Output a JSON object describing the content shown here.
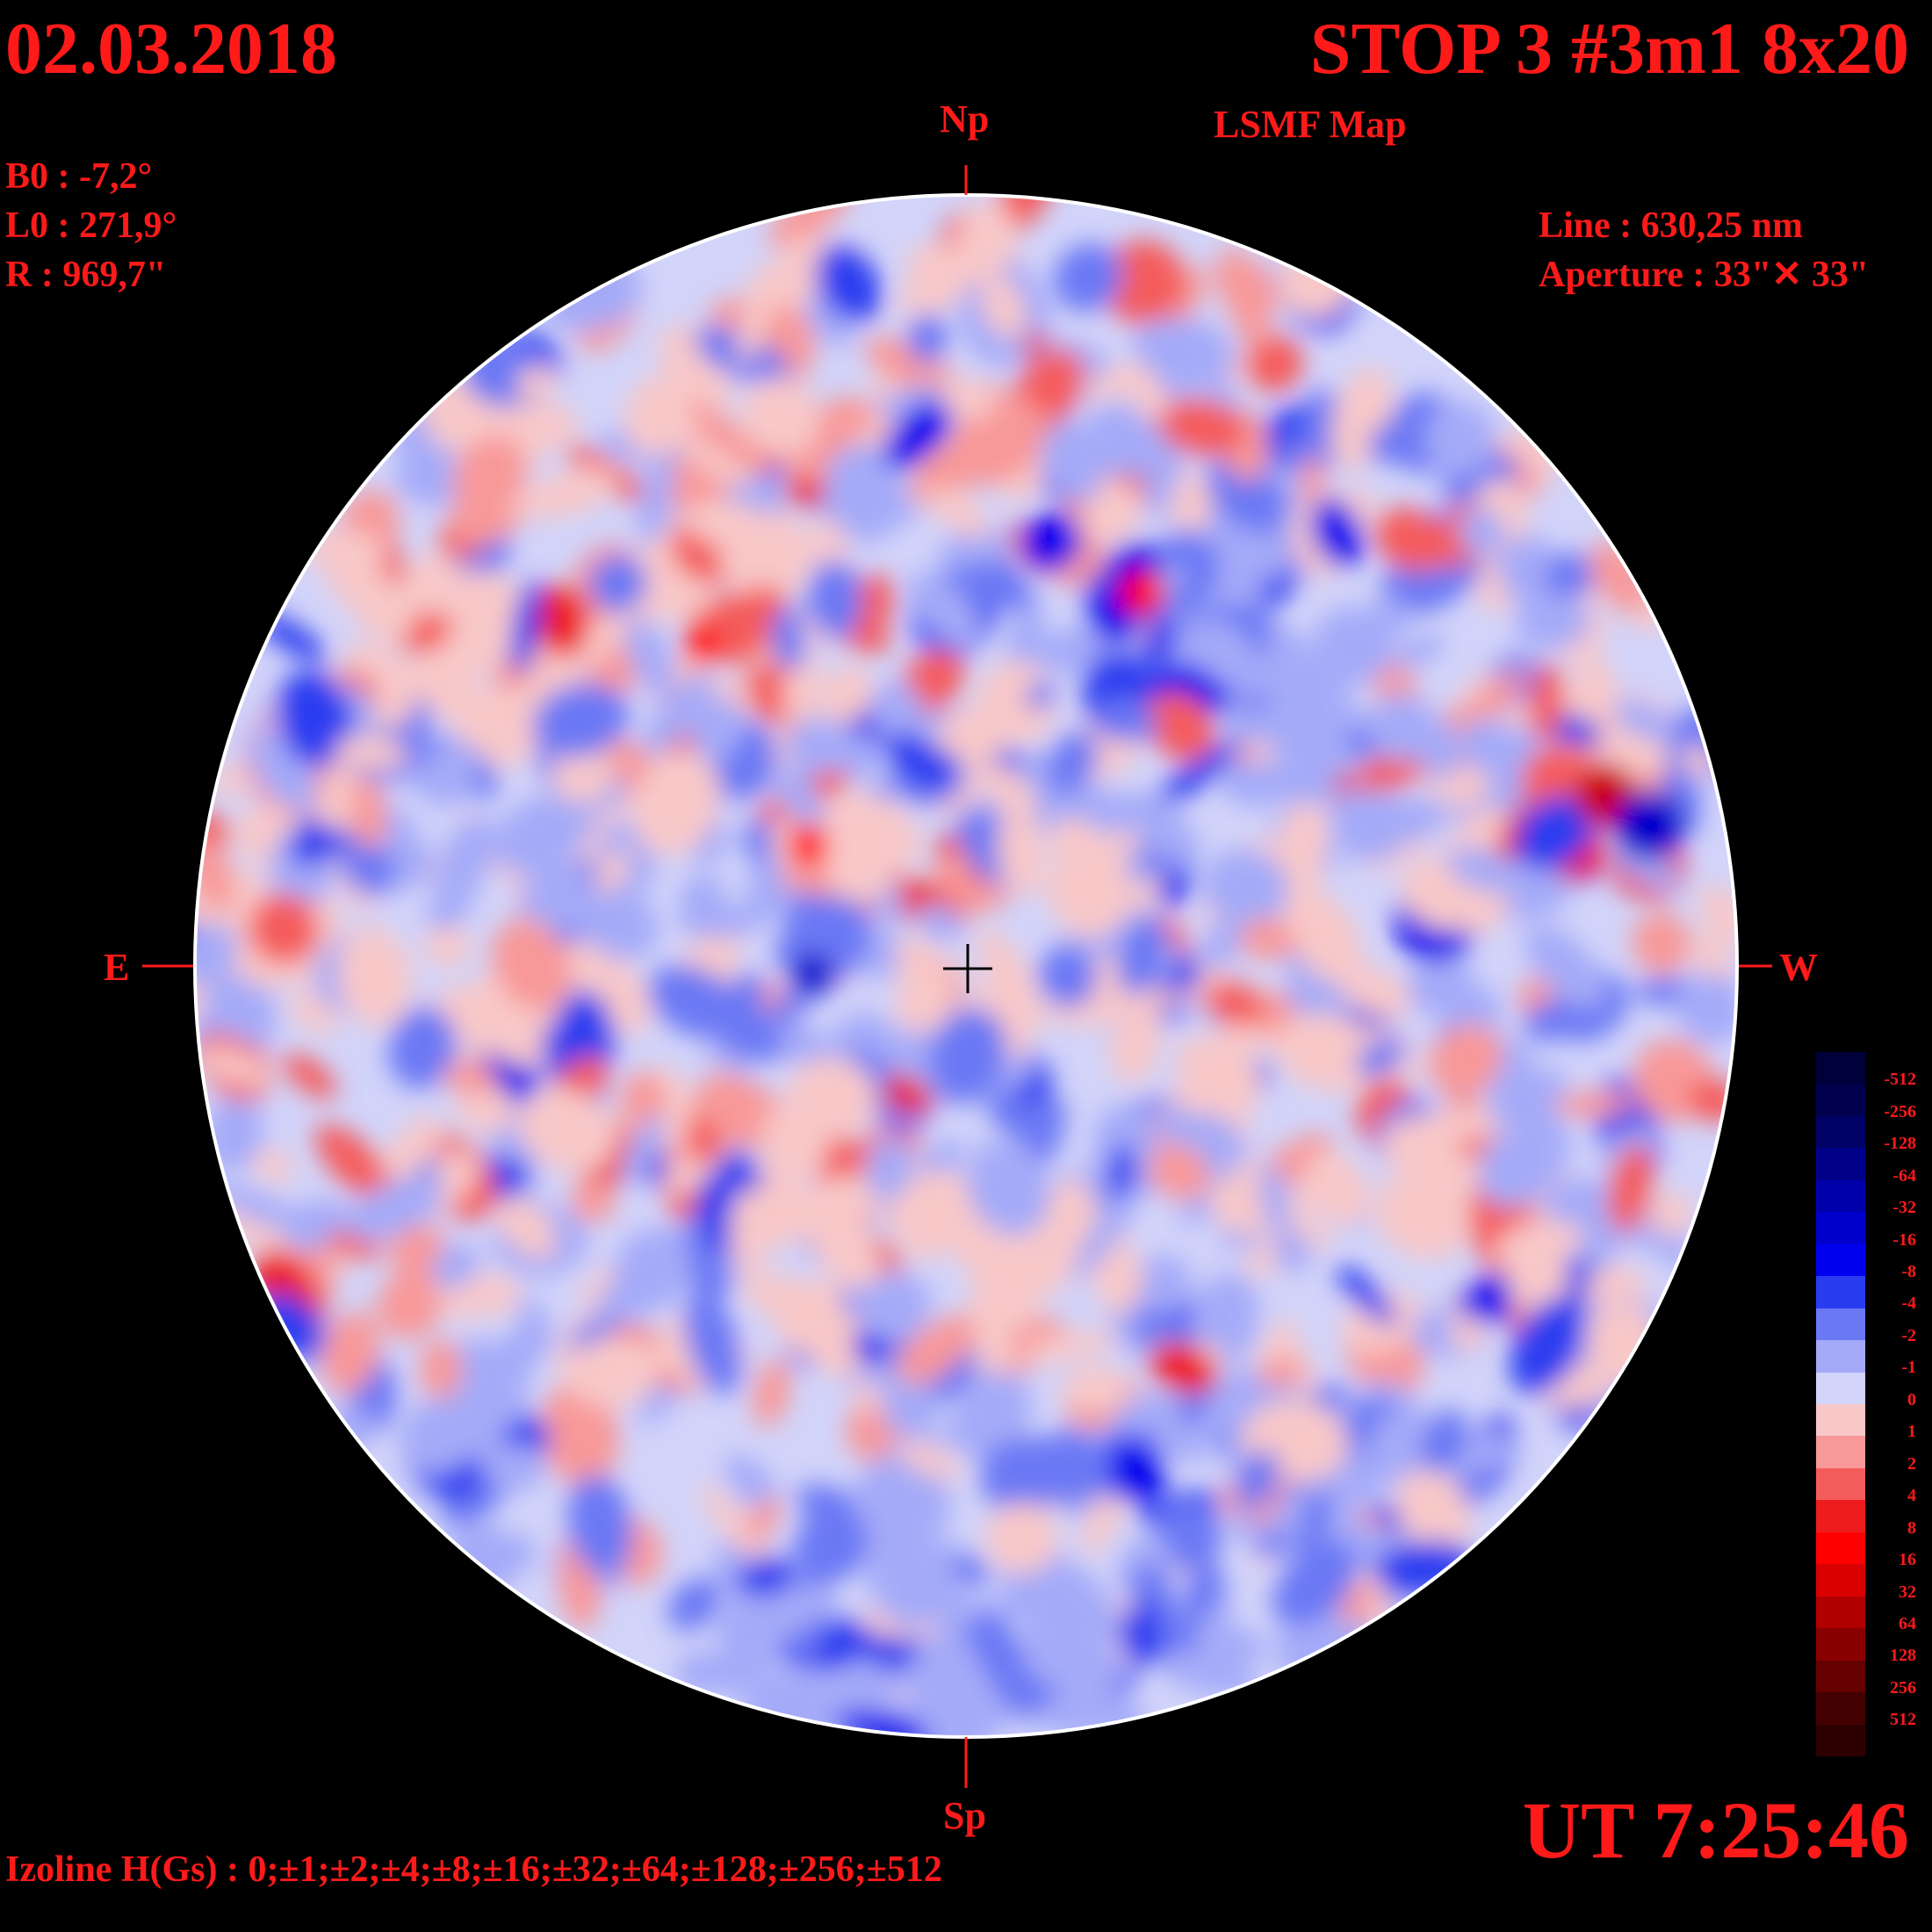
{
  "header": {
    "date": "02.03.2018",
    "title": "STOP 3 #3m1 8x20",
    "subtitle": "LSMF  Map"
  },
  "params": {
    "b0": "B0 : -7,2°",
    "l0": "L0 : 271,9°",
    "r": "R  : 969,7\""
  },
  "instrument": {
    "line": "Line :  630,25 nm",
    "aperture": "Aperture : 33\"✕ 33\""
  },
  "directions": {
    "north": "Np",
    "south": "Sp",
    "east": "E",
    "west": "W"
  },
  "time": "UT 7:25:46",
  "isolines": "Izoline H(Gs) : 0;±1;±2;±4;±8;±16;±32;±64;±128;±256;±512",
  "legend": {
    "levels": [
      {
        "label": "-512",
        "color": "#00003a"
      },
      {
        "label": "-256",
        "color": "#00004c"
      },
      {
        "label": "-128",
        "color": "#000066"
      },
      {
        "label": "-64",
        "color": "#000088"
      },
      {
        "label": "-32",
        "color": "#0000aa"
      },
      {
        "label": "-16",
        "color": "#0000cc"
      },
      {
        "label": "-8",
        "color": "#0000ee"
      },
      {
        "label": "-4",
        "color": "#2a3cf0"
      },
      {
        "label": "-2",
        "color": "#6a78f4"
      },
      {
        "label": "-1",
        "color": "#a4aaf8"
      },
      {
        "label": "0",
        "color": "#d2d4fa"
      },
      {
        "label": "1",
        "color": "#f8c8c8"
      },
      {
        "label": "2",
        "color": "#f89898"
      },
      {
        "label": "4",
        "color": "#f45c5c"
      },
      {
        "label": "8",
        "color": "#ee1c1c"
      },
      {
        "label": "16",
        "color": "#ff0000"
      },
      {
        "label": "32",
        "color": "#d80000"
      },
      {
        "label": "64",
        "color": "#b00000"
      },
      {
        "label": "128",
        "color": "#880000"
      },
      {
        "label": "256",
        "color": "#640000"
      },
      {
        "label": "512",
        "color": "#440000"
      },
      {
        "label": "",
        "color": "#2c0000"
      }
    ]
  }
}
